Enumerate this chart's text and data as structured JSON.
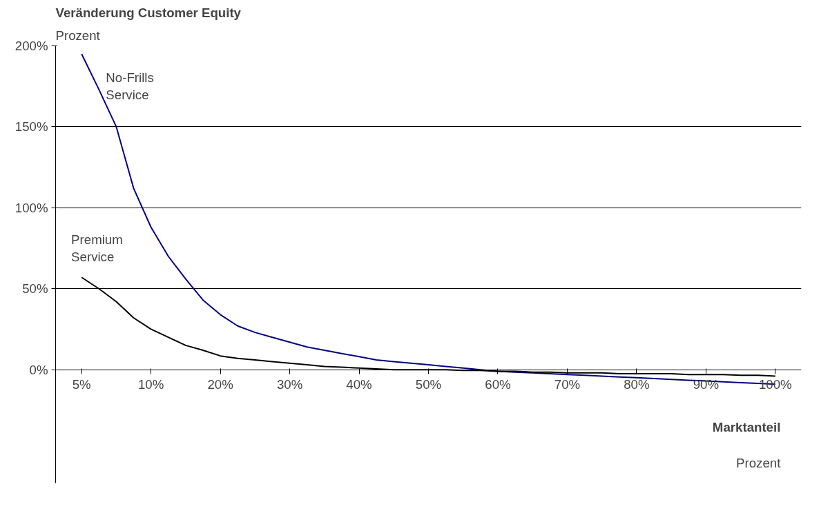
{
  "chart_data": {
    "type": "line",
    "title": "Veränderung Customer Equity",
    "subtitle": "Prozent",
    "xlabel": "Marktanteil",
    "annotations": [
      "Prozent"
    ],
    "categories": [
      "5%",
      null,
      null,
      null,
      "10%",
      null,
      null,
      null,
      "20%",
      null,
      null,
      null,
      "30%",
      null,
      null,
      null,
      "40%",
      null,
      null,
      null,
      "50%",
      null,
      null,
      null,
      "60%",
      null,
      null,
      null,
      "70%",
      null,
      null,
      null,
      "80%",
      null,
      null,
      null,
      "90%",
      null,
      null,
      null,
      "100%"
    ],
    "series": [
      {
        "name": "No-Frills Service",
        "color": "#000080",
        "values": [
          195,
          173,
          150,
          112,
          88,
          70,
          56,
          43,
          34,
          27,
          23,
          20,
          17,
          14,
          12,
          10,
          8,
          6,
          5,
          4,
          3,
          2,
          1,
          0,
          -1,
          -1.5,
          -2,
          -2.5,
          -3,
          -3.5,
          -4,
          -4.5,
          -5,
          -5.5,
          -6,
          -6.5,
          -7,
          -7.5,
          -8,
          -8.5,
          -9
        ]
      },
      {
        "name": "Premium Service",
        "color": "#000000",
        "values": [
          57,
          50,
          42,
          32,
          25,
          20,
          15,
          12,
          8.5,
          7,
          6,
          5,
          4,
          3,
          2,
          1.5,
          1,
          0.5,
          0,
          0,
          0,
          0,
          -0.5,
          -0.5,
          -1,
          -1,
          -1.5,
          -1.5,
          -2,
          -2,
          -2,
          -2.5,
          -2.5,
          -2.5,
          -2.5,
          -3,
          -3,
          -3,
          -3.5,
          -3.5,
          -4
        ]
      }
    ],
    "ylim": [
      -70,
      200
    ],
    "yticks": [
      {
        "value": 0,
        "label": "0%"
      },
      {
        "value": 50,
        "label": "50%"
      },
      {
        "value": 100,
        "label": "100%"
      },
      {
        "value": 150,
        "label": "150%"
      },
      {
        "value": 200,
        "label": "200%"
      }
    ],
    "grid": "y",
    "marker": "none",
    "line_style": "solid"
  }
}
